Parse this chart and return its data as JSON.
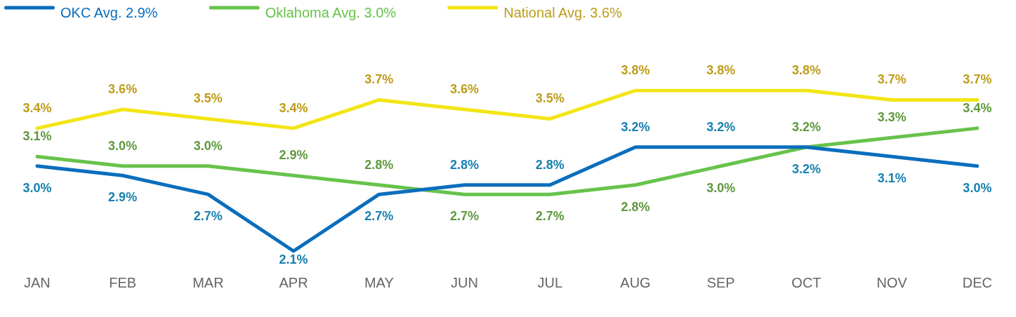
{
  "chart_data": {
    "type": "line",
    "categories": [
      "JAN",
      "FEB",
      "MAR",
      "APR",
      "MAY",
      "JUN",
      "JUL",
      "AUG",
      "SEP",
      "OCT",
      "NOV",
      "DEC"
    ],
    "series": [
      {
        "name": "OKC Avg. 2.9%",
        "color": "#0a6ebd",
        "values": [
          3.0,
          2.9,
          2.7,
          2.1,
          2.7,
          2.8,
          2.8,
          3.2,
          3.2,
          3.2,
          3.1,
          3.0
        ],
        "value_labels": [
          "3.0%",
          "2.9%",
          "2.7%",
          "2.1%",
          "2.7%",
          "2.8%",
          "2.8%",
          "3.2%",
          "3.2%",
          "3.2%",
          "3.1%",
          "3.0%"
        ]
      },
      {
        "name": "Oklahoma Avg. 3.0%",
        "color": "#67c34b",
        "values": [
          3.1,
          3.0,
          3.0,
          2.9,
          2.8,
          2.7,
          2.7,
          2.8,
          3.0,
          3.2,
          3.3,
          3.4
        ],
        "value_labels": [
          "3.1%",
          "3.0%",
          "3.0%",
          "2.9%",
          "2.8%",
          "2.7%",
          "2.7%",
          "2.8%",
          "3.0%",
          "3.2%",
          "3.3%",
          "3.4%"
        ]
      },
      {
        "name": "National Avg. 3.6%",
        "color": "#f2e514",
        "values": [
          3.4,
          3.6,
          3.5,
          3.4,
          3.7,
          3.6,
          3.5,
          3.8,
          3.8,
          3.8,
          3.7,
          3.7
        ],
        "value_labels": [
          "3.4%",
          "3.6%",
          "3.5%",
          "3.4%",
          "3.7%",
          "3.6%",
          "3.5%",
          "3.8%",
          "3.8%",
          "3.8%",
          "3.7%",
          "3.7%"
        ]
      }
    ],
    "tick_labels": "x",
    "legend": "top left"
  }
}
